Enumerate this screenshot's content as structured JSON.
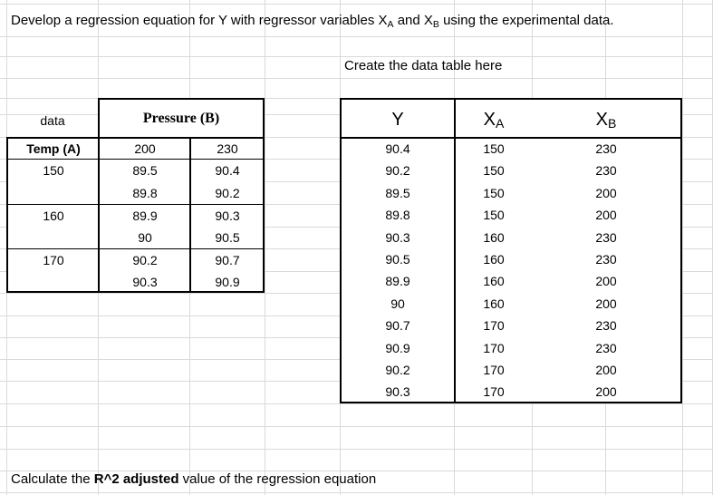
{
  "header": {
    "prefix": "Develop a regression equation for Y with regressor variables X",
    "sub_a": "A",
    "middle": " and X",
    "sub_b": "B",
    "suffix": " using the experimental data."
  },
  "instruction": "Create the data table here",
  "left_table": {
    "corner_label": "data",
    "pressure_header": "Pressure (B)",
    "temp_header": "Temp (A)",
    "pressure_levels": [
      "200",
      "230"
    ],
    "temp_levels": [
      "150",
      "160",
      "170"
    ],
    "rows": [
      [
        "89.5",
        "90.4"
      ],
      [
        "89.8",
        "90.2"
      ],
      [
        "89.9",
        "90.3"
      ],
      [
        "90",
        "90.5"
      ],
      [
        "90.2",
        "90.7"
      ],
      [
        "90.3",
        "90.9"
      ]
    ]
  },
  "right_table": {
    "header_y": "Y",
    "header_xa_main": "X",
    "header_xa_sub": "A",
    "header_xb_main": "X",
    "header_xb_sub": "B",
    "rows": [
      [
        "90.4",
        "150",
        "230"
      ],
      [
        "90.2",
        "150",
        "230"
      ],
      [
        "89.5",
        "150",
        "200"
      ],
      [
        "89.8",
        "150",
        "200"
      ],
      [
        "90.3",
        "160",
        "230"
      ],
      [
        "90.5",
        "160",
        "230"
      ],
      [
        "89.9",
        "160",
        "200"
      ],
      [
        "90",
        "160",
        "200"
      ],
      [
        "90.7",
        "170",
        "230"
      ],
      [
        "90.9",
        "170",
        "230"
      ],
      [
        "90.2",
        "170",
        "200"
      ],
      [
        "90.3",
        "170",
        "200"
      ]
    ]
  },
  "footer": {
    "prefix": "Calculate the ",
    "bold": "R^2 adjusted",
    "suffix": " value of the regression equation"
  }
}
